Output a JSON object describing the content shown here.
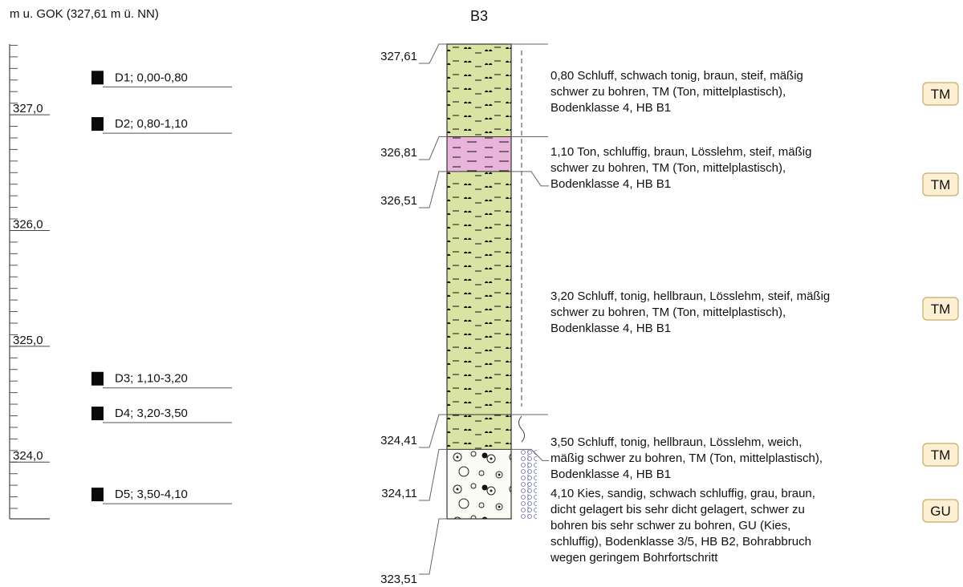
{
  "header": {
    "depth_axis_label": "m u. GOK (327,61 m ü. NN)"
  },
  "borehole": {
    "name": "B3"
  },
  "scale": {
    "top_elevation": 327.61,
    "bottom_elevation": 323.51,
    "tick_step": 0.1,
    "labels": [
      {
        "elevation": 327.0,
        "text": "327,0"
      },
      {
        "elevation": 326.0,
        "text": "326,0"
      },
      {
        "elevation": 325.0,
        "text": "325,0"
      },
      {
        "elevation": 324.0,
        "text": "324,0"
      }
    ]
  },
  "samples": [
    {
      "label": "D1; 0,00-0,80",
      "elevation": 327.31
    },
    {
      "label": "D2; 0,80-1,10",
      "elevation": 326.91
    },
    {
      "label": "D3; 1,10-3,20",
      "elevation": 324.71
    },
    {
      "label": "D4; 3,20-3,50",
      "elevation": 324.41
    },
    {
      "label": "D5; 3,50-4,10",
      "elevation": 323.71
    }
  ],
  "layers": [
    {
      "top": 327.61,
      "bottom": 326.81,
      "top_label": "327,61",
      "pattern": "silt",
      "color": "#d9e3a3",
      "description": [
        "0,80  Schluff, schwach tonig, braun, steif, mäßig",
        "schwer zu bohren, TM (Ton, mittelplastisch),",
        "Bodenklasse 4, HB B1"
      ],
      "soil_group": "TM"
    },
    {
      "top": 326.81,
      "bottom": 326.51,
      "top_label": "326,81",
      "pattern": "clay",
      "color": "#e8b4da",
      "description": [
        "1,10  Ton, schluffig, braun, Lösslehm, steif, mäßig",
        "schwer zu bohren, TM (Ton, mittelplastisch),",
        "Bodenklasse 4, HB B1"
      ],
      "soil_group": "TM"
    },
    {
      "top": 326.51,
      "bottom": 324.41,
      "top_label": "326,51",
      "pattern": "silt",
      "color": "#d9e3a3",
      "description": [
        "3,20  Schluff, tonig, hellbraun, Lösslehm, steif, mäßig",
        "schwer zu bohren, TM (Ton, mittelplastisch),",
        "Bodenklasse 4, HB B1"
      ],
      "soil_group": "TM"
    },
    {
      "top": 324.41,
      "bottom": 324.11,
      "top_label": "324,41",
      "pattern": "silt",
      "color": "#d9e3a3",
      "description": [
        "3,50  Schluff, tonig, hellbraun, Lösslehm, weich,",
        "mäßig schwer zu bohren, TM (Ton, mittelplastisch),",
        "Bodenklasse 4, HB B1"
      ],
      "soil_group": "TM"
    },
    {
      "top": 324.11,
      "bottom": 323.51,
      "top_label": "324,11",
      "pattern": "gravel",
      "color": "#fbfbf5",
      "description": [
        "4,10  Kies, sandig, schwach schluffig, grau, braun,",
        "dicht gelagert bis sehr dicht gelagert, schwer zu",
        "bohren bis sehr schwer zu bohren, GU (Kies,",
        "schluffig), Bodenklasse 3/5, HB B2, Bohrabbruch",
        "wegen geringem Bohrfortschritt"
      ],
      "soil_group": "GU"
    }
  ],
  "bottom_label": "323,51"
}
